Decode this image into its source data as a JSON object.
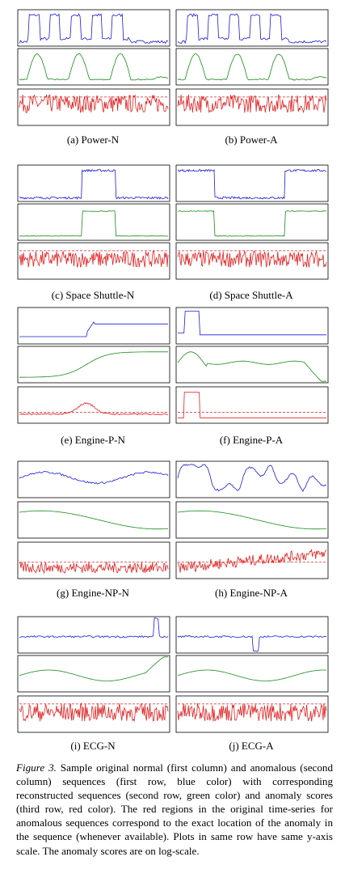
{
  "colors": {
    "original": "#1a1adb",
    "reconstruction": "#1a8a1a",
    "score": "#e02020",
    "threshold": "#e02020"
  },
  "rows": [
    {
      "labels": [
        "(a) Power-N",
        "(b) Power-A"
      ]
    },
    {
      "labels": [
        "(c) Space Shuttle-N",
        "(d) Space Shuttle-A"
      ]
    },
    {
      "labels": [
        "(e) Engine-P-N",
        "(f) Engine-P-A"
      ]
    },
    {
      "labels": [
        "(g) Engine-NP-N",
        "(h) Engine-NP-A"
      ]
    },
    {
      "labels": [
        "(i) ECG-N",
        "(j) ECG-A"
      ]
    }
  ],
  "figure_caption": {
    "label": "Figure 3.",
    "text": " Sample original normal (first column) and anomalous (second column) sequences (first row, blue color) with corresponding reconstructed sequences (second row, green color) and anomaly scores (third row, red color). The red regions in the original time-series for anomalous sequences correspond to the exact location of the anomaly in the sequence (whenever available). Plots in same row have same y-axis scale. The anomaly scores are on log-scale."
  }
}
